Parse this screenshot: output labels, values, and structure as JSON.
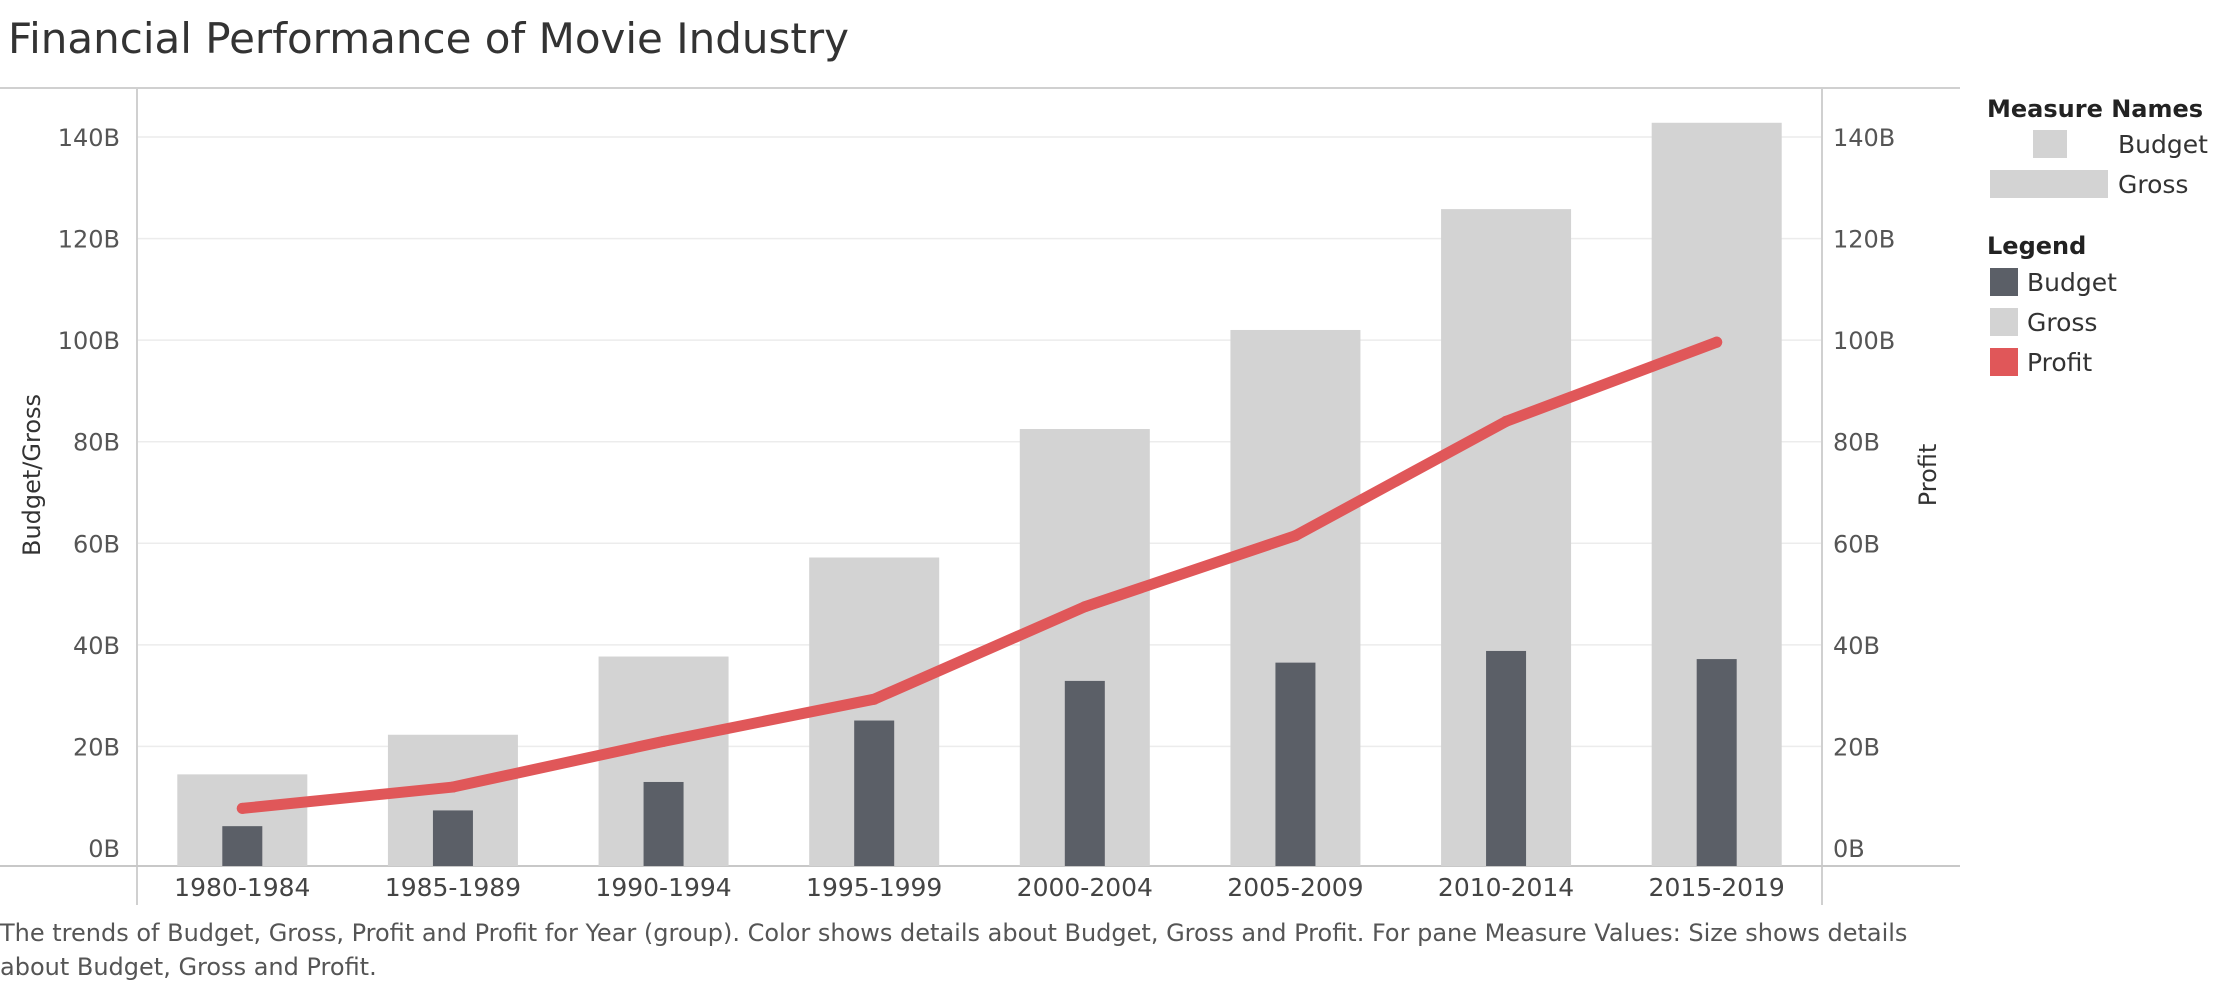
{
  "page": {
    "title": "Financial Performance of Movie Industry",
    "caption": "The trends of Budget, Gross, Profit and Profit for Year (group).  Color shows details about Budget, Gross and Profit.  For pane Measure Values:  Size shows details about Budget, Gross and Profit."
  },
  "legend": {
    "size_title": "Measure Names",
    "size_items": [
      "Budget",
      "Gross"
    ],
    "color_title": "Legend",
    "color_items": [
      {
        "label": "Budget",
        "color": "#5b5f67"
      },
      {
        "label": "Gross",
        "color": "#d3d3d3"
      },
      {
        "label": "Profit",
        "color": "#e05759"
      }
    ]
  },
  "chart_data": {
    "type": "bar",
    "title": "Financial Performance of Movie Industry",
    "xlabel": "",
    "ylabel": "Budget/Gross",
    "y2label": "Profit",
    "categories": [
      "1980-1984",
      "1985-1989",
      "1990-1994",
      "1995-1999",
      "2000-2004",
      "2005-2009",
      "2010-2014",
      "2015-2019"
    ],
    "ylim": [
      0,
      150
    ],
    "y_ticks": [
      0,
      20,
      40,
      60,
      80,
      100,
      120,
      140
    ],
    "y_tick_labels": [
      "0B",
      "20B",
      "40B",
      "60B",
      "80B",
      "100B",
      "120B",
      "140B"
    ],
    "y2lim": [
      0,
      150
    ],
    "y2_ticks": [
      0,
      20,
      40,
      60,
      80,
      100,
      120,
      140
    ],
    "y2_tick_labels": [
      "0B",
      "20B",
      "40B",
      "60B",
      "80B",
      "100B",
      "120B",
      "140B"
    ],
    "units": "billions",
    "series": [
      {
        "name": "Gross",
        "type": "bar",
        "axis": "left",
        "color": "#d3d3d3",
        "values": [
          14.5,
          22.3,
          37.7,
          57.2,
          82.5,
          102.0,
          125.8,
          142.8
        ]
      },
      {
        "name": "Budget",
        "type": "bar",
        "axis": "left",
        "color": "#5b5f67",
        "values": [
          4.3,
          7.4,
          13.0,
          25.1,
          32.9,
          36.5,
          38.8,
          37.2
        ]
      },
      {
        "name": "Profit",
        "type": "line",
        "axis": "right",
        "color": "#e05759",
        "values": [
          7.8,
          12.0,
          21.0,
          29.3,
          47.5,
          61.5,
          84.0,
          99.6
        ]
      }
    ],
    "grid": true
  }
}
